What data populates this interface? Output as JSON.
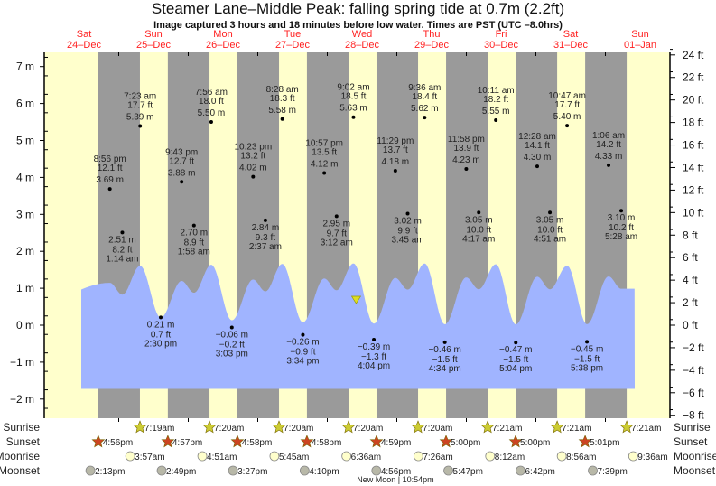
{
  "title": "Steamer Lane–Middle Peak: falling  spring tide at 0.7m (2.2ft)",
  "subtitle": "Image captured 3 hours and 18 minutes before low water. Times are PST (UTC –8.0hrs)",
  "colors": {
    "day": "#ffffcc",
    "night": "#9a9a9a",
    "water": "#a0b4ff",
    "day_label": "#ff2222",
    "sunrise_star": "#cccc33",
    "sunset_star": "#cc4422",
    "moonrise": "#ffffcc",
    "moonset": "#b8b8a8",
    "now_marker": "#dddd22"
  },
  "chart_data": {
    "type": "area",
    "title": "Steamer Lane–Middle Peak: falling  spring tide at 0.7m (2.2ft)",
    "ylim_m": [
      -2.4,
      7.4
    ],
    "yticks_m": [
      "7 m",
      "6 m",
      "5 m",
      "4 m",
      "3 m",
      "2 m",
      "1 m",
      "0 m",
      "−1 m",
      "−2 m"
    ],
    "yticks_ft": [
      "24 ft",
      "22 ft",
      "20 ft",
      "18 ft",
      "16 ft",
      "14 ft",
      "12 ft",
      "10 ft",
      "8 ft",
      "6 ft",
      "4 ft",
      "2 ft",
      "0 ft",
      "−2 ft",
      "−4 ft",
      "−6 ft",
      "−8 ft"
    ],
    "days": [
      {
        "dow": "Sat",
        "date": "24–Dec"
      },
      {
        "dow": "Sun",
        "date": "25–Dec"
      },
      {
        "dow": "Mon",
        "date": "26–Dec"
      },
      {
        "dow": "Tue",
        "date": "27–Dec"
      },
      {
        "dow": "Wed",
        "date": "28–Dec"
      },
      {
        "dow": "Thu",
        "date": "29–Dec"
      },
      {
        "dow": "Fri",
        "date": "30–Dec"
      },
      {
        "dow": "Sat",
        "date": "31–Dec"
      },
      {
        "dow": "Sun",
        "date": "01–Jan"
      }
    ],
    "extremes": [
      {
        "day": 0,
        "time": "8:56 pm",
        "m": 3.69,
        "ft": "12.1 ft",
        "type": "high"
      },
      {
        "day": 1,
        "time": "1:14 am",
        "m": 2.51,
        "ft": "8.2 ft",
        "type": "low"
      },
      {
        "day": 1,
        "time": "7:23 am",
        "m": 5.39,
        "ft": "17.7 ft",
        "type": "high"
      },
      {
        "day": 1,
        "time": "2:30 pm",
        "m": 0.21,
        "ft": "0.7 ft",
        "type": "low"
      },
      {
        "day": 1,
        "time": "9:43 pm",
        "m": 3.88,
        "ft": "12.7 ft",
        "type": "high"
      },
      {
        "day": 2,
        "time": "1:58 am",
        "m": 2.7,
        "ft": "8.9 ft",
        "type": "low"
      },
      {
        "day": 2,
        "time": "7:56 am",
        "m": 5.5,
        "ft": "18.0 ft",
        "type": "high"
      },
      {
        "day": 2,
        "time": "3:03 pm",
        "m": -0.06,
        "ft": "−0.2 ft",
        "type": "low"
      },
      {
        "day": 2,
        "time": "10:23 pm",
        "m": 4.02,
        "ft": "13.2 ft",
        "type": "high"
      },
      {
        "day": 3,
        "time": "2:37 am",
        "m": 2.84,
        "ft": "9.3 ft",
        "type": "low"
      },
      {
        "day": 3,
        "time": "8:28 am",
        "m": 5.58,
        "ft": "18.3 ft",
        "type": "high"
      },
      {
        "day": 3,
        "time": "3:34 pm",
        "m": -0.26,
        "ft": "−0.9 ft",
        "type": "low"
      },
      {
        "day": 3,
        "time": "10:57 pm",
        "m": 4.12,
        "ft": "13.5 ft",
        "type": "high"
      },
      {
        "day": 4,
        "time": "3:12 am",
        "m": 2.95,
        "ft": "9.7 ft",
        "type": "low"
      },
      {
        "day": 4,
        "time": "9:02 am",
        "m": 5.63,
        "ft": "18.5 ft",
        "type": "high"
      },
      {
        "day": 4,
        "time": "4:04 pm",
        "m": -0.39,
        "ft": "−1.3 ft",
        "type": "low"
      },
      {
        "day": 4,
        "time": "11:29 pm",
        "m": 4.18,
        "ft": "13.7 ft",
        "type": "high"
      },
      {
        "day": 5,
        "time": "3:45 am",
        "m": 3.02,
        "ft": "9.9 ft",
        "type": "low"
      },
      {
        "day": 5,
        "time": "9:36 am",
        "m": 5.62,
        "ft": "18.4 ft",
        "type": "high"
      },
      {
        "day": 5,
        "time": "4:34 pm",
        "m": -0.46,
        "ft": "−1.5 ft",
        "type": "low"
      },
      {
        "day": 5,
        "time": "11:58 pm",
        "m": 4.23,
        "ft": "13.9 ft",
        "type": "high"
      },
      {
        "day": 6,
        "time": "4:17 am",
        "m": 3.05,
        "ft": "10.0 ft",
        "type": "low"
      },
      {
        "day": 6,
        "time": "10:11 am",
        "m": 5.55,
        "ft": "18.2 ft",
        "type": "high"
      },
      {
        "day": 6,
        "time": "5:04 pm",
        "m": -0.47,
        "ft": "−1.5 ft",
        "type": "low"
      },
      {
        "day": 7,
        "time": "12:28 am",
        "m": 4.3,
        "ft": "14.1 ft",
        "type": "high"
      },
      {
        "day": 7,
        "time": "4:51 am",
        "m": 3.05,
        "ft": "10.0 ft",
        "type": "low"
      },
      {
        "day": 7,
        "time": "10:47 am",
        "m": 5.4,
        "ft": "17.7 ft",
        "type": "high"
      },
      {
        "day": 7,
        "time": "5:38 pm",
        "m": -0.45,
        "ft": "−1.5 ft",
        "type": "low"
      },
      {
        "day": 8,
        "time": "1:06 am",
        "m": 4.33,
        "ft": "14.2 ft",
        "type": "high"
      },
      {
        "day": 8,
        "time": "5:28 am",
        "m": 3.1,
        "ft": "10.2 ft",
        "type": "low"
      }
    ],
    "current": {
      "day": 4,
      "time": "12:46 pm",
      "m": 0.7,
      "ft": "2.2 ft",
      "state": "falling"
    },
    "rows": [
      {
        "label": "Sunrise",
        "kind": "sunrise",
        "events": [
          {
            "day": 1,
            "time": "7:19am"
          },
          {
            "day": 2,
            "time": "7:20am"
          },
          {
            "day": 3,
            "time": "7:20am"
          },
          {
            "day": 4,
            "time": "7:20am"
          },
          {
            "day": 5,
            "time": "7:20am"
          },
          {
            "day": 6,
            "time": "7:21am"
          },
          {
            "day": 7,
            "time": "7:21am"
          },
          {
            "day": 8,
            "time": "7:21am"
          }
        ]
      },
      {
        "label": "Sunset",
        "kind": "sunset",
        "events": [
          {
            "day": 0,
            "time": "4:56pm"
          },
          {
            "day": 1,
            "time": "4:57pm"
          },
          {
            "day": 2,
            "time": "4:58pm"
          },
          {
            "day": 3,
            "time": "4:58pm"
          },
          {
            "day": 4,
            "time": "4:59pm"
          },
          {
            "day": 5,
            "time": "5:00pm"
          },
          {
            "day": 6,
            "time": "5:00pm"
          },
          {
            "day": 7,
            "time": "5:01pm"
          }
        ]
      },
      {
        "label": "Moonrise",
        "kind": "moonrise",
        "events": [
          {
            "day": 1,
            "time": "3:57am"
          },
          {
            "day": 2,
            "time": "4:51am"
          },
          {
            "day": 3,
            "time": "5:45am"
          },
          {
            "day": 4,
            "time": "6:36am"
          },
          {
            "day": 5,
            "time": "7:26am"
          },
          {
            "day": 6,
            "time": "8:12am"
          },
          {
            "day": 7,
            "time": "8:56am"
          },
          {
            "day": 8,
            "time": "9:36am"
          }
        ]
      },
      {
        "label": "Moonset",
        "kind": "moonset",
        "events": [
          {
            "day": 0,
            "time": "2:13pm"
          },
          {
            "day": 1,
            "time": "2:49pm"
          },
          {
            "day": 2,
            "time": "3:27pm"
          },
          {
            "day": 3,
            "time": "4:10pm"
          },
          {
            "day": 4,
            "time": "4:56pm"
          },
          {
            "day": 5,
            "time": "5:47pm"
          },
          {
            "day": 6,
            "time": "6:42pm"
          },
          {
            "day": 7,
            "time": "7:39pm"
          }
        ]
      }
    ],
    "moon_phase": {
      "label": "New Moon | 10:54pm",
      "day": 4,
      "time": "10:54pm"
    }
  }
}
